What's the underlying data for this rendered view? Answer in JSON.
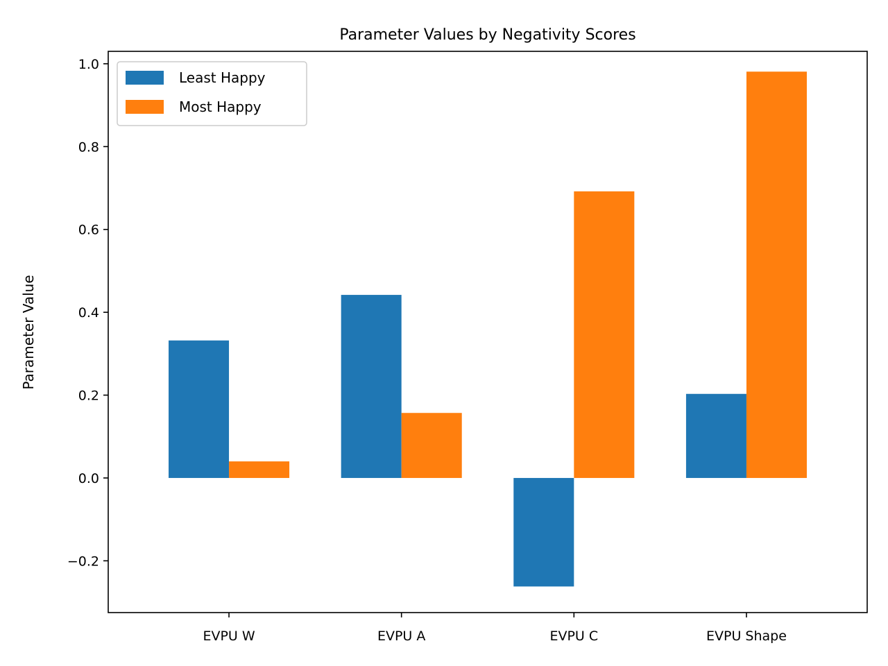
{
  "chart_data": {
    "type": "bar",
    "title": "Parameter Values by Negativity Scores",
    "xlabel": "",
    "ylabel": "Parameter Value",
    "categories": [
      "EVPU W",
      "EVPU A",
      "EVPU C",
      "EVPU Shape"
    ],
    "series": [
      {
        "name": "Least Happy",
        "color": "#1f77b4",
        "values": [
          0.332,
          0.442,
          -0.262,
          0.203
        ]
      },
      {
        "name": "Most Happy",
        "color": "#ff7f0e",
        "values": [
          0.04,
          0.157,
          0.692,
          0.981
        ]
      }
    ],
    "ylim": [
      -0.325,
      1.03
    ],
    "yticks": [
      -0.2,
      0.0,
      0.2,
      0.4,
      0.6,
      0.8,
      1.0
    ],
    "ytick_labels": [
      "−0.2",
      "0.0",
      "0.2",
      "0.4",
      "0.6",
      "0.8",
      "1.0"
    ],
    "grid": false,
    "legend_position": "top-left"
  }
}
